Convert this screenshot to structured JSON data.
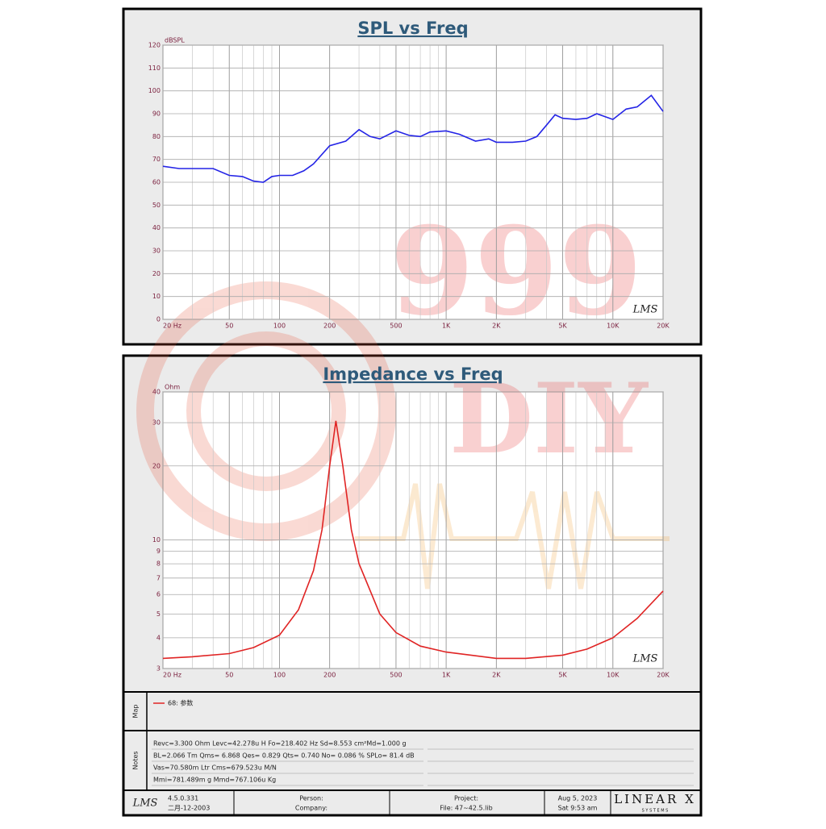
{
  "chart_data": [
    {
      "type": "line",
      "title": "SPL vs Freq",
      "y_label": "dBSPL",
      "xlog": true,
      "ylog": false,
      "grid": true,
      "color": "#2424e6",
      "xlim": [
        20,
        20000
      ],
      "ylim": [
        0,
        120
      ],
      "xticks": [
        {
          "value": 20,
          "label": "20 Hz"
        },
        50,
        100,
        200,
        500,
        {
          "value": 1000,
          "label": "1K"
        },
        {
          "value": 2000,
          "label": "2K"
        },
        {
          "value": 5000,
          "label": "5K"
        },
        {
          "value": 10000,
          "label": "10K"
        },
        {
          "value": 20000,
          "label": "20K"
        }
      ],
      "yticks": [
        0,
        10,
        20,
        30,
        40,
        50,
        60,
        70,
        80,
        90,
        100,
        110,
        120
      ],
      "x": [
        20,
        25,
        30,
        40,
        50,
        60,
        70,
        80,
        90,
        100,
        120,
        140,
        160,
        200,
        250,
        300,
        350,
        400,
        500,
        600,
        700,
        800,
        1000,
        1200,
        1500,
        1800,
        2000,
        2500,
        3000,
        3500,
        4000,
        4500,
        5000,
        6000,
        7000,
        8000,
        10000,
        12000,
        14000,
        17000,
        20000
      ],
      "values": [
        67,
        66,
        66,
        66,
        63,
        62.5,
        60.5,
        60,
        62.5,
        63,
        63,
        65,
        68,
        76,
        78,
        83,
        80,
        79,
        82.5,
        80.5,
        80,
        82,
        82.5,
        81,
        78,
        79,
        77.5,
        77.5,
        78,
        80,
        85,
        89.5,
        88,
        87.5,
        88,
        90,
        87.5,
        92,
        93,
        98,
        91
      ]
    },
    {
      "type": "line",
      "title": "Impedance vs Freq",
      "y_label": "Ohm",
      "xlog": true,
      "ylog": true,
      "grid": true,
      "color": "#e02424",
      "xlim": [
        20,
        20000
      ],
      "ylim": [
        3,
        40
      ],
      "xticks": [
        {
          "value": 20,
          "label": "20 Hz"
        },
        50,
        100,
        200,
        500,
        {
          "value": 1000,
          "label": "1K"
        },
        {
          "value": 2000,
          "label": "2K"
        },
        {
          "value": 5000,
          "label": "5K"
        },
        {
          "value": 10000,
          "label": "10K"
        },
        {
          "value": 20000,
          "label": "20K"
        }
      ],
      "yticks": [
        3,
        4,
        5,
        6,
        7,
        8,
        9,
        10,
        20,
        30,
        40
      ],
      "x": [
        20,
        30,
        50,
        70,
        100,
        130,
        160,
        180,
        200,
        218,
        240,
        270,
        300,
        400,
        500,
        700,
        1000,
        2000,
        3000,
        5000,
        7000,
        10000,
        14000,
        20000
      ],
      "values": [
        3.3,
        3.35,
        3.45,
        3.65,
        4.1,
        5.2,
        7.5,
        11,
        20,
        30.5,
        20,
        11,
        8,
        5,
        4.2,
        3.7,
        3.5,
        3.3,
        3.3,
        3.4,
        3.6,
        4.0,
        4.8,
        6.2
      ]
    }
  ],
  "watermark": {
    "number": "999",
    "text": "DIY"
  },
  "logo": "LMS",
  "map": {
    "label": "Map",
    "legend": "68: 参数"
  },
  "notes": {
    "label": "Notes",
    "lines": [
      "Revc=3.300 Ohm  Levc=42.278u H  Fo=218.402 Hz  Sd=8.553 cm²Md=1.000 g",
      "BL=2.066 Tm  Qms= 6.868  Qes= 0.829  Qts= 0.740  No= 0.086 %  SPLo= 81.4 dB",
      "Vas=70.580m Ltr  Cms=679.523u M/N",
      "Mmi=781.489m g  Mmd=767.106u Kg"
    ]
  },
  "footer": {
    "version": "4.5.0.331",
    "build_date": "二月-12-2003",
    "person": "Person:",
    "company": "Company:",
    "project": "Project:",
    "file": "File: 47~42.5.lib",
    "date": "Aug  5, 2023",
    "time": "Sat  9:53 am",
    "brand": "LINEAR X",
    "brand_sub": "S Y S T E M S"
  }
}
